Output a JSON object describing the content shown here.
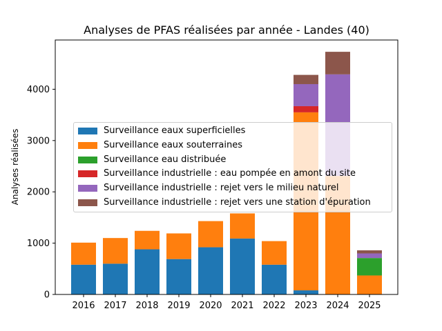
{
  "chart_data": {
    "type": "bar",
    "stacked": true,
    "title": "Analyses de PFAS réalisées par année - Landes (40)",
    "xlabel": "",
    "ylabel": "Analyses réalisées",
    "categories": [
      "2016",
      "2017",
      "2018",
      "2019",
      "2020",
      "2021",
      "2022",
      "2023",
      "2024",
      "2025"
    ],
    "yticks": [
      0,
      1000,
      2000,
      3000,
      4000
    ],
    "ylim": [
      0,
      4960
    ],
    "grid": false,
    "legend_position": "center-left",
    "series": [
      {
        "name": "Surveillance eaux superficielles",
        "color": "#1f77b4",
        "values": [
          580,
          600,
          880,
          690,
          920,
          1090,
          580,
          80,
          0,
          0
        ]
      },
      {
        "name": "Surveillance eaux souterraines",
        "color": "#ff7f0e",
        "values": [
          430,
          500,
          360,
          500,
          510,
          490,
          460,
          3470,
          2310,
          370
        ]
      },
      {
        "name": "Surveillance eau distribuée",
        "color": "#2ca02c",
        "values": [
          0,
          0,
          0,
          0,
          0,
          0,
          0,
          0,
          0,
          340
        ]
      },
      {
        "name": "Surveillance industrielle : eau pompée en amont du site",
        "color": "#d62728",
        "values": [
          0,
          0,
          0,
          0,
          0,
          0,
          0,
          120,
          0,
          0
        ]
      },
      {
        "name": "Surveillance industrielle : rejet vers le milieu naturel",
        "color": "#9467bd",
        "values": [
          0,
          0,
          0,
          0,
          0,
          0,
          0,
          430,
          1980,
          90
        ]
      },
      {
        "name": "Surveillance industrielle : rejet vers une station d'épuration",
        "color": "#8c564b",
        "values": [
          0,
          0,
          0,
          0,
          0,
          0,
          0,
          180,
          440,
          60
        ]
      }
    ]
  }
}
